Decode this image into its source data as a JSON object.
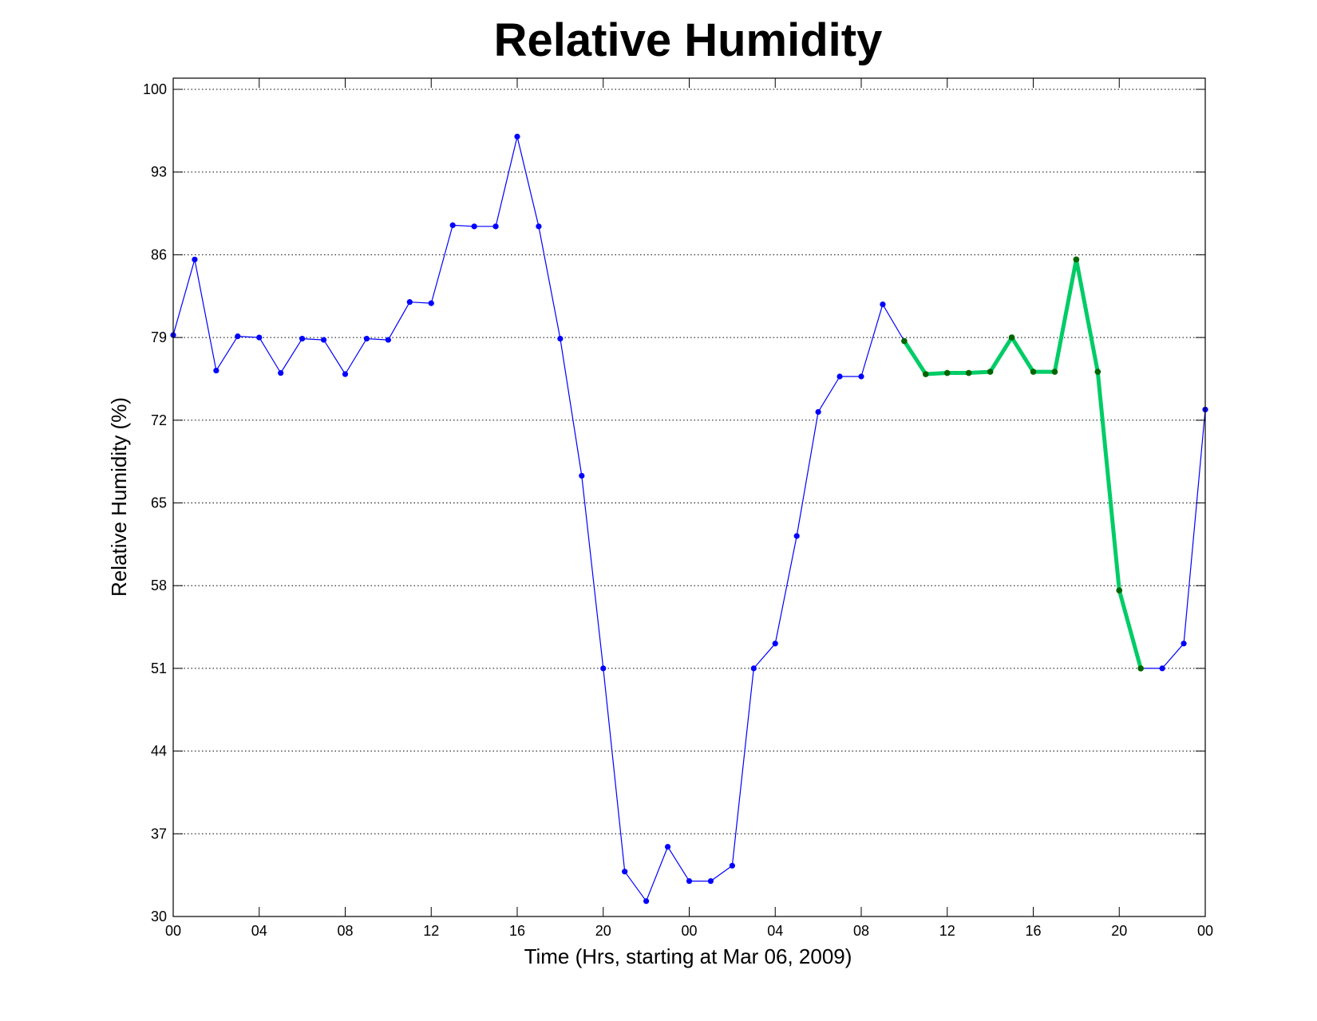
{
  "chart_data": {
    "type": "line",
    "title": "Relative Humidity",
    "xlabel": "Time (Hrs, starting at Mar 06, 2009)",
    "ylabel": "Relative Humidity (%)",
    "xlim": [
      0,
      48
    ],
    "ylim": [
      30,
      100
    ],
    "x_tick_labels": [
      "00",
      "04",
      "08",
      "12",
      "16",
      "20",
      "00",
      "04",
      "08",
      "12",
      "16",
      "20",
      "00"
    ],
    "y_tick_labels": [
      "30",
      "37",
      "44",
      "51",
      "58",
      "65",
      "72",
      "79",
      "86",
      "93",
      "100"
    ],
    "grid": "horizontal-dotted",
    "series": [
      {
        "color": "#0000ff",
        "x": [
          0,
          1,
          2,
          3,
          4,
          5,
          6,
          7,
          8,
          9,
          10,
          11,
          12,
          13,
          14,
          15,
          16,
          17,
          18,
          19,
          20,
          21,
          22,
          23,
          24,
          25,
          26,
          27,
          28,
          29,
          30,
          31,
          32,
          33,
          34,
          35,
          36,
          37,
          38,
          39,
          40,
          41,
          42,
          43,
          44,
          45,
          46,
          47,
          48
        ],
        "y": [
          79.2,
          85.6,
          76.2,
          79.1,
          79.0,
          76.0,
          78.9,
          78.8,
          75.9,
          78.9,
          78.8,
          82.0,
          81.9,
          88.5,
          88.4,
          88.4,
          96.0,
          88.4,
          78.9,
          67.3,
          51.0,
          33.8,
          31.3,
          35.9,
          33.0,
          33.0,
          34.3,
          51.0,
          53.1,
          62.2,
          72.7,
          75.7,
          75.7,
          81.8,
          78.7,
          75.9,
          76.0,
          76.0,
          76.1,
          79.0,
          76.1,
          76.1,
          85.6,
          76.1,
          57.6,
          51.0,
          51.0,
          53.1,
          72.9
        ]
      },
      {
        "color": "#00cc66",
        "marker_color": "#006600",
        "x": [
          34,
          35,
          36,
          37,
          38,
          39,
          40,
          41,
          42,
          43,
          44,
          45
        ],
        "y": [
          78.7,
          75.9,
          76.0,
          76.0,
          76.1,
          79.0,
          76.1,
          76.1,
          85.6,
          76.1,
          57.6,
          51.0
        ]
      }
    ]
  }
}
